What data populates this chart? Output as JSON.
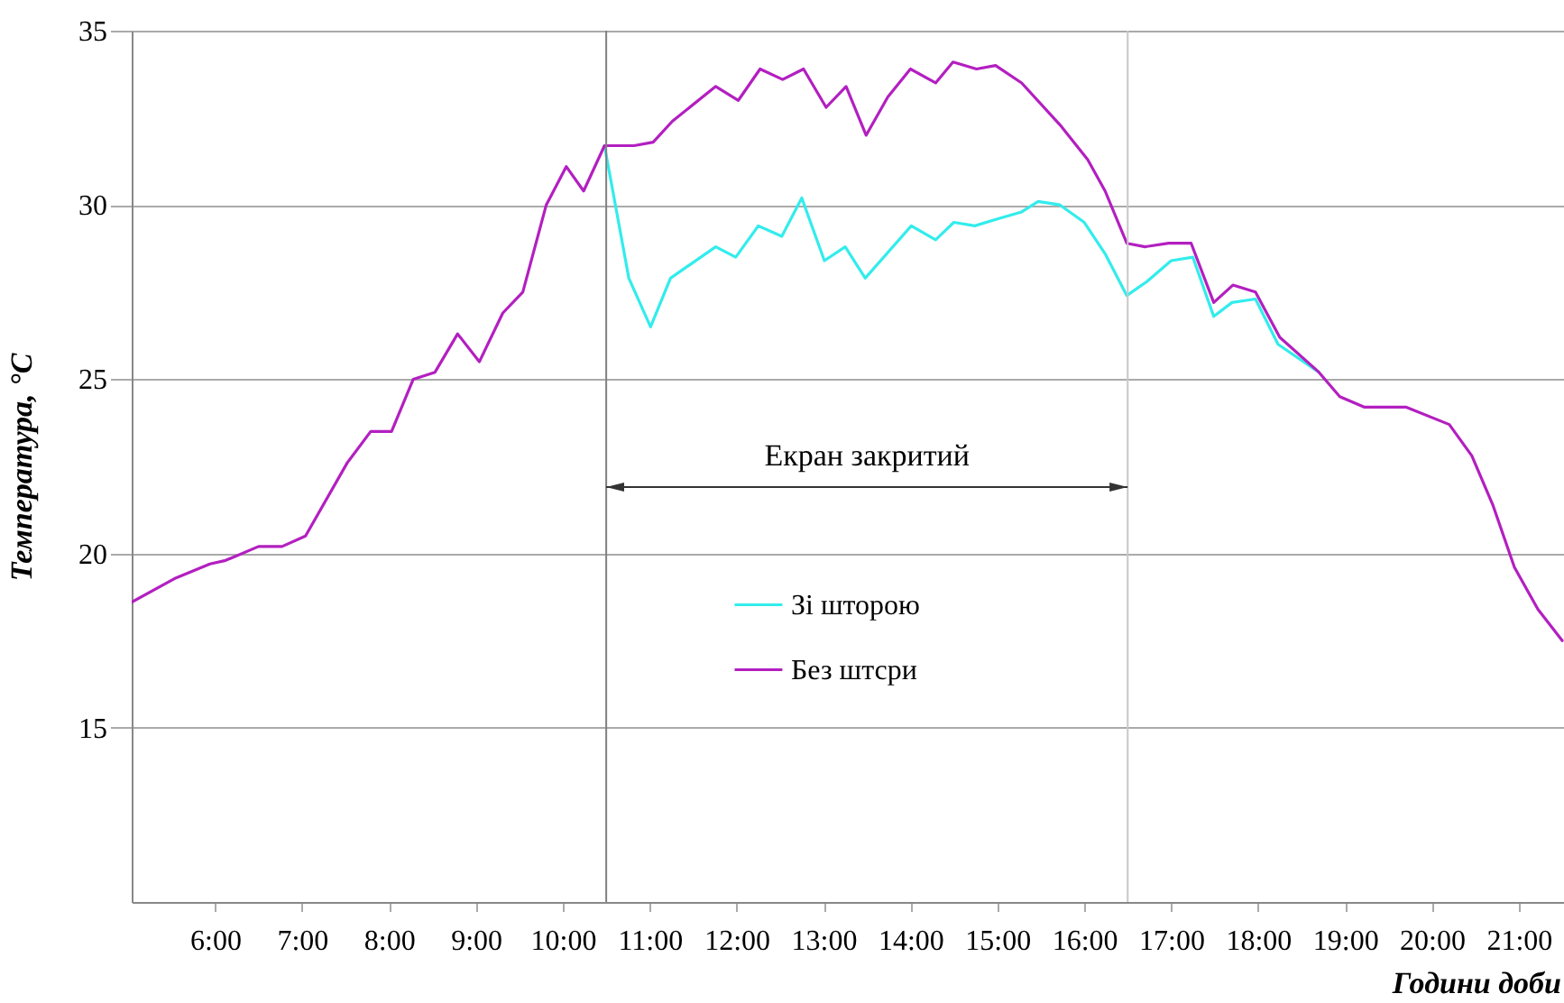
{
  "chart_data": {
    "type": "line",
    "xlabel": "Години доби",
    "ylabel": "Температура, °С",
    "xlim": [
      5.04,
      21.52
    ],
    "ylim": [
      10,
      35
    ],
    "xticks": [
      {
        "value": 6,
        "label": "6:00"
      },
      {
        "value": 7,
        "label": "7:00"
      },
      {
        "value": 8,
        "label": "8:00"
      },
      {
        "value": 9,
        "label": "9:00"
      },
      {
        "value": 10,
        "label": "10:00"
      },
      {
        "value": 11,
        "label": "11:00"
      },
      {
        "value": 12,
        "label": "12:00"
      },
      {
        "value": 13,
        "label": "13:00"
      },
      {
        "value": 14,
        "label": "14:00"
      },
      {
        "value": 15,
        "label": "15:00"
      },
      {
        "value": 16,
        "label": "16:00"
      },
      {
        "value": 17,
        "label": "17:00"
      },
      {
        "value": 18,
        "label": "18:00"
      },
      {
        "value": 19,
        "label": "19:00"
      },
      {
        "value": 20,
        "label": "20:00"
      },
      {
        "value": 21,
        "label": "21:00"
      }
    ],
    "yticks": [
      15,
      20,
      25,
      30,
      35
    ],
    "grid": "y",
    "legend": "center",
    "line_style": "solid",
    "ref_lines": [
      {
        "axis": "x",
        "value": 10.5,
        "color": "#808080"
      },
      {
        "axis": "x",
        "value": 16.5,
        "color": "#c8c8c8"
      }
    ],
    "annotations": [
      "Екран закритий"
    ],
    "series": [
      {
        "name": "Зі шторою",
        "color": "#33ecec",
        "x": [
          10.48,
          10.76,
          11.01,
          11.24,
          11.76,
          11.99,
          12.25,
          12.52,
          12.75,
          13.01,
          13.25,
          13.48,
          14.01,
          14.29,
          14.5,
          14.74,
          15.0,
          15.28,
          15.47,
          15.72,
          16.0,
          16.24,
          16.49,
          16.72,
          17.0,
          17.25,
          17.49,
          17.7,
          17.97,
          18.23,
          18.7
        ],
        "values": [
          31.7,
          27.9,
          26.5,
          27.9,
          28.8,
          28.5,
          29.4,
          29.1,
          30.2,
          28.4,
          28.8,
          27.9,
          29.4,
          29.0,
          29.5,
          29.4,
          29.6,
          29.8,
          30.1,
          30.0,
          29.5,
          28.6,
          27.4,
          27.8,
          28.4,
          28.5,
          26.8,
          27.2,
          27.3,
          26.0,
          25.2
        ]
      },
      {
        "name": "Без штсри",
        "color": "#b31fc0",
        "x": [
          5.04,
          5.55,
          5.94,
          6.12,
          6.5,
          6.77,
          7.04,
          7.52,
          7.79,
          8.03,
          8.28,
          8.53,
          8.79,
          9.04,
          9.31,
          9.54,
          9.81,
          10.04,
          10.24,
          10.48,
          10.82,
          11.04,
          11.26,
          11.76,
          12.02,
          12.27,
          12.53,
          12.77,
          13.03,
          13.26,
          13.49,
          13.74,
          14.0,
          14.29,
          14.49,
          14.76,
          14.98,
          15.28,
          15.72,
          16.04,
          16.24,
          16.49,
          16.7,
          16.97,
          17.23,
          17.49,
          17.71,
          17.97,
          18.25,
          18.7,
          18.94,
          19.22,
          19.7,
          20.2,
          20.46,
          20.7,
          20.95,
          21.22,
          21.5
        ],
        "values": [
          18.6,
          19.3,
          19.7,
          19.8,
          20.2,
          20.2,
          20.5,
          22.6,
          23.5,
          23.5,
          25.0,
          25.2,
          26.3,
          25.5,
          26.9,
          27.5,
          30.0,
          31.1,
          30.4,
          31.7,
          31.7,
          31.8,
          32.4,
          33.4,
          33.0,
          33.9,
          33.6,
          33.9,
          32.8,
          33.4,
          32.0,
          33.1,
          33.9,
          33.5,
          34.1,
          33.9,
          34.0,
          33.5,
          32.3,
          31.3,
          30.4,
          28.9,
          28.8,
          28.9,
          28.9,
          27.2,
          27.7,
          27.5,
          26.2,
          25.2,
          24.5,
          24.2,
          24.2,
          23.7,
          22.8,
          21.4,
          19.6,
          18.4,
          17.5
        ]
      }
    ]
  }
}
